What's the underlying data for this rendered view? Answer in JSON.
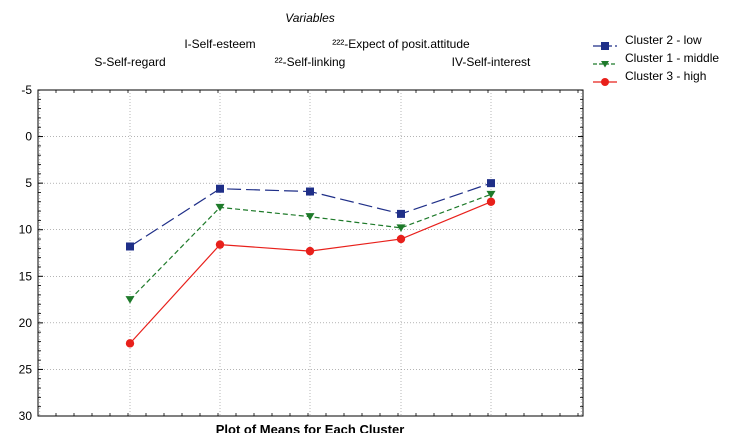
{
  "chart_data": {
    "type": "line",
    "title": "Plot of Means for Each Cluster",
    "xlabel": "Variables",
    "ylabel": "",
    "categories": [
      "S-Self-regard",
      "I-Self-esteem",
      "²²-Self-linking",
      "²²²-Expect of posit.attitude",
      "IV-Self-interest"
    ],
    "ylim": [
      -5,
      30
    ],
    "y_inverted": true,
    "y_ticks": [
      "-5",
      "0",
      "5",
      "10",
      "15",
      "20",
      "25",
      "30"
    ],
    "y_tick_values": [
      -5,
      0,
      5,
      10,
      15,
      20,
      25,
      30
    ],
    "grid": true,
    "legend_position": "top-right, outside plot",
    "series": [
      {
        "name": "Cluster  2 - low",
        "values": [
          11.8,
          5.6,
          5.9,
          8.3,
          5.0
        ],
        "color": "#1f2f88",
        "marker": "square",
        "dash": "long-dash"
      },
      {
        "name": "Cluster  1 - middle",
        "values": [
          17.5,
          7.6,
          8.6,
          9.8,
          6.2
        ],
        "color": "#1e7a2a",
        "marker": "triangle-down",
        "dash": "short-dash"
      },
      {
        "name": "Cluster  3 - high",
        "values": [
          22.2,
          11.6,
          12.3,
          11.0,
          7.0
        ],
        "color": "#e8201b",
        "marker": "circle",
        "dash": "solid"
      }
    ]
  }
}
